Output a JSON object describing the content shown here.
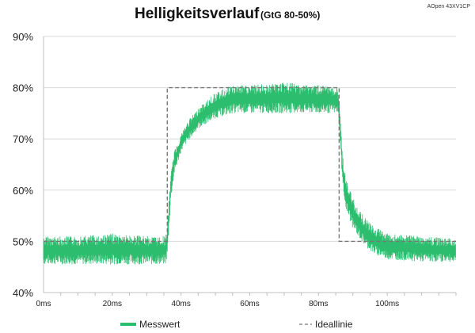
{
  "header": {
    "title": "Helligkeitsverlauf",
    "subtitle": "(GtG 80-50%)",
    "model": "AOpen 43XV1CP"
  },
  "colors": {
    "measured": "#2dbd6e",
    "ideal": "#777777",
    "grid": "#d9d9d9",
    "axis": "#bfbfbf"
  },
  "chart_data": {
    "type": "line",
    "title": "Helligkeitsverlauf",
    "subtitle": "(GtG 80-50%)",
    "xlabel": "",
    "ylabel": "",
    "xlim": [
      0,
      120
    ],
    "ylim": [
      40,
      90
    ],
    "x_ticks": [
      0,
      20,
      40,
      60,
      80,
      100
    ],
    "x_tick_labels": [
      "0ms",
      "20ms",
      "40ms",
      "60ms",
      "80ms",
      "100ms"
    ],
    "y_ticks": [
      40,
      50,
      60,
      70,
      80,
      90
    ],
    "y_tick_labels": [
      "40%",
      "50%",
      "60%",
      "70%",
      "80%",
      "90%"
    ],
    "grid": "horizontal",
    "legend_position": "bottom",
    "series": [
      {
        "name": "Messwert",
        "style": "noisy band",
        "band": [
          {
            "x": 0,
            "low": 45.5,
            "high": 51.0
          },
          {
            "x": 10,
            "low": 45.5,
            "high": 51.0
          },
          {
            "x": 20,
            "low": 45.5,
            "high": 51.5
          },
          {
            "x": 30,
            "low": 45.5,
            "high": 51.0
          },
          {
            "x": 35.5,
            "low": 45.5,
            "high": 51.0
          },
          {
            "x": 36,
            "low": 47.0,
            "high": 53.0
          },
          {
            "x": 37,
            "low": 58.0,
            "high": 63.0
          },
          {
            "x": 38,
            "low": 63.0,
            "high": 67.5
          },
          {
            "x": 40,
            "low": 67.5,
            "high": 71.0
          },
          {
            "x": 42,
            "low": 69.5,
            "high": 73.5
          },
          {
            "x": 45,
            "low": 72.0,
            "high": 76.0
          },
          {
            "x": 50,
            "low": 74.0,
            "high": 79.0
          },
          {
            "x": 55,
            "low": 75.0,
            "high": 80.5
          },
          {
            "x": 60,
            "low": 75.0,
            "high": 80.5
          },
          {
            "x": 70,
            "low": 75.0,
            "high": 81.0
          },
          {
            "x": 80,
            "low": 75.0,
            "high": 80.5
          },
          {
            "x": 85.5,
            "low": 75.0,
            "high": 80.0
          },
          {
            "x": 86,
            "low": 73.0,
            "high": 78.0
          },
          {
            "x": 87,
            "low": 61.0,
            "high": 67.0
          },
          {
            "x": 88,
            "low": 56.0,
            "high": 62.0
          },
          {
            "x": 90,
            "low": 52.5,
            "high": 58.5
          },
          {
            "x": 93,
            "low": 49.5,
            "high": 55.0
          },
          {
            "x": 96,
            "low": 47.5,
            "high": 53.0
          },
          {
            "x": 100,
            "low": 46.5,
            "high": 51.5
          },
          {
            "x": 110,
            "low": 46.0,
            "high": 51.0
          },
          {
            "x": 120,
            "low": 46.0,
            "high": 50.5
          }
        ]
      },
      {
        "name": "Ideallinie",
        "style": "dashed",
        "points": [
          {
            "x": 0,
            "y": 50
          },
          {
            "x": 36,
            "y": 50
          },
          {
            "x": 36,
            "y": 80
          },
          {
            "x": 86,
            "y": 80
          },
          {
            "x": 86,
            "y": 50
          },
          {
            "x": 120,
            "y": 50
          }
        ]
      }
    ]
  }
}
